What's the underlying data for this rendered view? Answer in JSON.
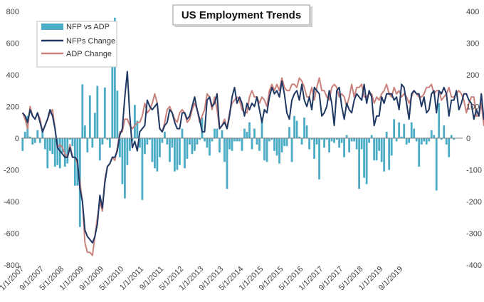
{
  "chart_data": {
    "type": "bar",
    "title": "US Employment Trends",
    "xlabel": "",
    "ylabel": "",
    "x_ticks": [
      "1/1/2007",
      "9/1/2007",
      "5/1/2008",
      "1/1/2009",
      "9/1/2009",
      "5/1/2010",
      "1/1/2011",
      "9/1/2011",
      "5/1/2012",
      "1/1/2013",
      "9/1/2013",
      "5/1/2014",
      "1/1/2015",
      "9/1/2015",
      "5/1/2016",
      "1/1/2017",
      "9/1/2017",
      "5/1/2018",
      "1/1/2019",
      "9/1/2019"
    ],
    "y_left_ticks": [
      "-800",
      "-600",
      "-400",
      "-200",
      "0",
      "200",
      "400",
      "600",
      "800"
    ],
    "y_right_ticks": [
      "-400",
      "-300",
      "-200",
      "-100",
      "0",
      "100",
      "200",
      "300",
      "400"
    ],
    "ylim_left": [
      -800,
      800
    ],
    "ylim_right": [
      -400,
      400
    ],
    "grid": false,
    "legend_placement": "top-left",
    "months_start": "2007-01",
    "series": [
      {
        "name": "NFP vs ADP",
        "axis": "left",
        "kind": "bar",
        "color": "#4bacc6",
        "values": [
          -80,
          40,
          140,
          10,
          -40,
          -30,
          50,
          -30,
          60,
          -70,
          -190,
          -80,
          -100,
          -180,
          -170,
          -190,
          -90,
          -180,
          -160,
          -10,
          -50,
          -300,
          -300,
          -560,
          340,
          80,
          -90,
          270,
          -60,
          160,
          330,
          -140,
          -40,
          320,
          -10,
          -60,
          520,
          760,
          300,
          -120,
          -290,
          -380,
          -170,
          -80,
          -20,
          210,
          110,
          -60,
          -390,
          -100,
          -40,
          -10,
          -150,
          -190,
          -210,
          -120,
          -30,
          40,
          -40,
          -150,
          -60,
          -210,
          -200,
          -170,
          60,
          -190,
          -130,
          -40,
          -100,
          -80,
          -40,
          -10,
          130,
          -20,
          -60,
          -110,
          -20,
          60,
          60,
          -90,
          50,
          -150,
          -320,
          -70,
          -80,
          -20,
          -20,
          -20,
          -80,
          60,
          40,
          100,
          -70,
          60,
          -40,
          -80,
          130,
          -140,
          -150,
          -20,
          -10,
          -80,
          -110,
          -160,
          -90,
          -50,
          -50,
          70,
          -150,
          140,
          110,
          10,
          -40,
          130,
          80,
          -70,
          -10,
          -130,
          -40,
          -260,
          -10,
          -60,
          -10,
          -90,
          -20,
          -30,
          -10,
          -60,
          -30,
          -120,
          20,
          -90,
          -20,
          -20,
          -70,
          -320,
          -70,
          -250,
          -290,
          -30,
          20,
          -140,
          -140,
          -80,
          -150,
          -210,
          40,
          -200,
          -110,
          120,
          -20,
          100,
          10,
          90,
          -40,
          -30,
          100,
          60,
          -20,
          -180,
          -40,
          -20,
          -40,
          -20,
          50,
          20,
          -330,
          220,
          -10,
          80,
          -40,
          -120,
          20,
          -10,
          0,
          0,
          0
        ]
      },
      {
        "name": "NFPs Change",
        "axis": "right",
        "kind": "line",
        "color": "#1f3864",
        "values": [
          80,
          70,
          50,
          90,
          70,
          60,
          80,
          50,
          20,
          40,
          60,
          90,
          70,
          30,
          -30,
          -40,
          -50,
          -60,
          -60,
          -30,
          -60,
          -60,
          -70,
          -160,
          -200,
          -290,
          -310,
          -320,
          -330,
          -310,
          -270,
          -180,
          -220,
          -140,
          -90,
          -80,
          -60,
          -60,
          -40,
          10,
          30,
          130,
          210,
          70,
          -30,
          -10,
          -40,
          20,
          30,
          40,
          120,
          100,
          90,
          100,
          110,
          30,
          20,
          40,
          50,
          90,
          80,
          50,
          30,
          30,
          80,
          80,
          60,
          70,
          100,
          130,
          90,
          60,
          20,
          20,
          120,
          130,
          100,
          110,
          140,
          30,
          40,
          50,
          30,
          70,
          130,
          160,
          110,
          130,
          110,
          70,
          110,
          90,
          110,
          100,
          130,
          90,
          50,
          90,
          80,
          130,
          160,
          140,
          150,
          130,
          180,
          140,
          80,
          60,
          120,
          140,
          150,
          120,
          170,
          120,
          100,
          130,
          90,
          160,
          150,
          140,
          70,
          80,
          100,
          150,
          110,
          40,
          150,
          160,
          100,
          60,
          110,
          90,
          80,
          120,
          140,
          130,
          120,
          170,
          110,
          150,
          130,
          40,
          70,
          70,
          130,
          110,
          140,
          140,
          140,
          120,
          130,
          90,
          170,
          160,
          110,
          60,
          140,
          150,
          140,
          140,
          100,
          130,
          80,
          90,
          140,
          150,
          80,
          150,
          140,
          160,
          140,
          70,
          120,
          120,
          150,
          90,
          110,
          140,
          140,
          120,
          110,
          60,
          90,
          70,
          140,
          60,
          70,
          70,
          70,
          60,
          130
        ]
      },
      {
        "name": "ADP Change",
        "axis": "right",
        "kind": "line",
        "color": "#c9817c",
        "values": [
          80,
          60,
          30,
          100,
          70,
          60,
          80,
          60,
          20,
          40,
          60,
          80,
          90,
          30,
          -30,
          -20,
          -30,
          -50,
          -60,
          -20,
          -60,
          -60,
          -80,
          -140,
          -200,
          -330,
          -360,
          -360,
          -370,
          -310,
          -250,
          -200,
          -230,
          -130,
          -90,
          -80,
          -60,
          -70,
          -30,
          20,
          20,
          60,
          60,
          40,
          30,
          40,
          50,
          50,
          70,
          110,
          80,
          90,
          110,
          140,
          110,
          30,
          20,
          50,
          90,
          100,
          80,
          60,
          50,
          80,
          90,
          80,
          50,
          60,
          90,
          110,
          90,
          50,
          70,
          90,
          140,
          130,
          90,
          130,
          90,
          30,
          40,
          60,
          30,
          80,
          110,
          120,
          130,
          120,
          90,
          80,
          80,
          130,
          150,
          130,
          130,
          110,
          130,
          120,
          100,
          150,
          170,
          150,
          170,
          150,
          190,
          160,
          150,
          150,
          170,
          170,
          160,
          190,
          180,
          160,
          130,
          130,
          160,
          120,
          160,
          190,
          150,
          150,
          130,
          120,
          160,
          170,
          160,
          130,
          140,
          130,
          100,
          130,
          170,
          130,
          160,
          160,
          170,
          130,
          130,
          140,
          140,
          110,
          130,
          120,
          140,
          150,
          170,
          140,
          130,
          160,
          140,
          150,
          130,
          140,
          130,
          110,
          130,
          150,
          140,
          130,
          130,
          140,
          160,
          160,
          170,
          140,
          150,
          150,
          120,
          130,
          140,
          160,
          130,
          130,
          140,
          150,
          140,
          120,
          80,
          110,
          130,
          130,
          70,
          70,
          110,
          40,
          100
        ]
      }
    ]
  }
}
